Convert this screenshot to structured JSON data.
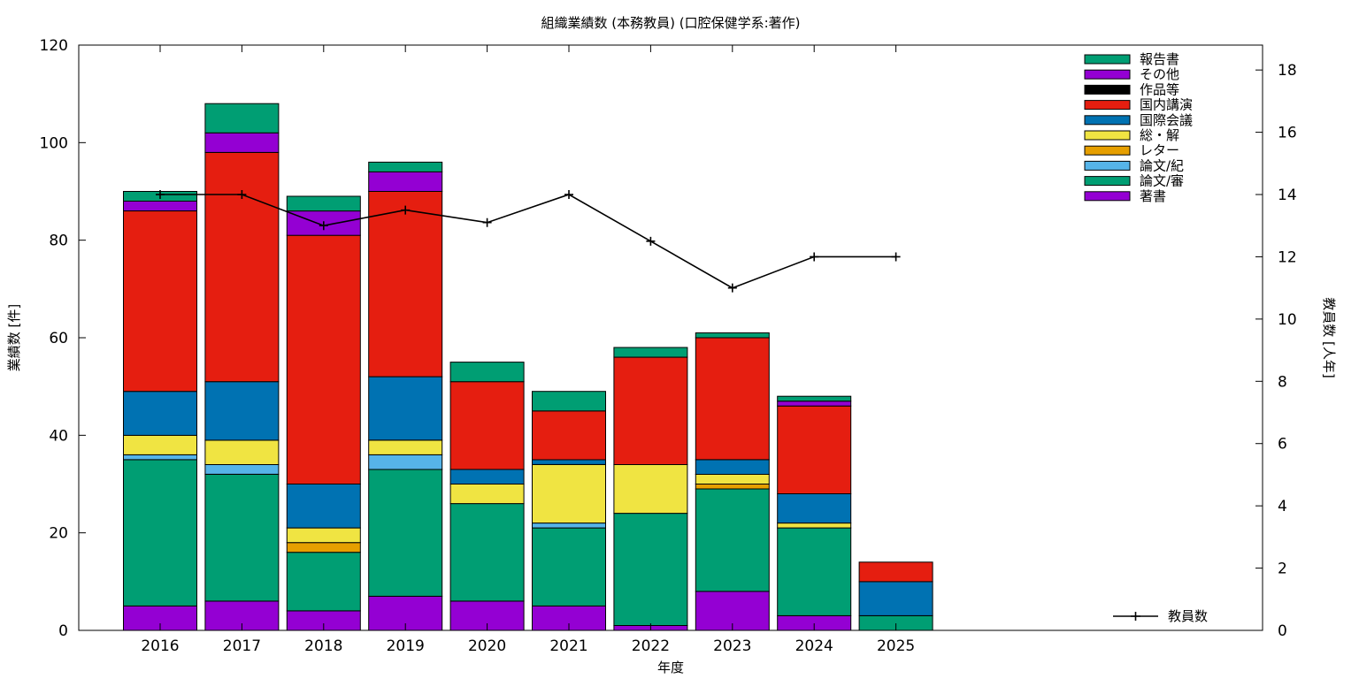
{
  "chart_data": {
    "type": "bar",
    "stacked": true,
    "title": "組織業績数 (本務教員) (口腔保健学系:著作)",
    "xlabel": "年度",
    "ylabel": "業績数 [件]",
    "y2label": "教員数 [人年]",
    "categories": [
      "2016",
      "2017",
      "2018",
      "2019",
      "2020",
      "2021",
      "2022",
      "2023",
      "2024",
      "2025"
    ],
    "ylim": [
      0,
      120
    ],
    "yticks": [
      0,
      20,
      40,
      60,
      80,
      100,
      120
    ],
    "y2lim": [
      0,
      18.8
    ],
    "y2ticks": [
      0,
      2,
      4,
      6,
      8,
      10,
      12,
      14,
      16,
      18
    ],
    "grid": false,
    "legend_position": "top-right",
    "series": [
      {
        "name": "著書",
        "color": "#9400d3",
        "values": [
          5,
          6,
          4,
          7,
          6,
          5,
          1,
          8,
          3,
          0
        ]
      },
      {
        "name": "論文/審",
        "color": "#009e73",
        "values": [
          30,
          26,
          12,
          26,
          20,
          16,
          23,
          21,
          18,
          3
        ]
      },
      {
        "name": "論文/紀",
        "color": "#56b4e9",
        "values": [
          1,
          2,
          0,
          3,
          0,
          1,
          0,
          0,
          0,
          0
        ]
      },
      {
        "name": "レター",
        "color": "#e69f00",
        "values": [
          0,
          0,
          2,
          0,
          0,
          0,
          0,
          1,
          0,
          0
        ]
      },
      {
        "name": "総・解",
        "color": "#f0e442",
        "values": [
          4,
          5,
          3,
          3,
          4,
          12,
          10,
          2,
          1,
          0
        ]
      },
      {
        "name": "国際会議",
        "color": "#0072b2",
        "values": [
          9,
          12,
          9,
          13,
          3,
          1,
          0,
          3,
          6,
          7
        ]
      },
      {
        "name": "国内講演",
        "color": "#e51e10",
        "values": [
          37,
          47,
          51,
          38,
          18,
          10,
          22,
          25,
          18,
          4
        ]
      },
      {
        "name": "作品等",
        "color": "#000000",
        "values": [
          0,
          0,
          0,
          0,
          0,
          0,
          0,
          0,
          0,
          0
        ]
      },
      {
        "name": "その他",
        "color": "#9400d3",
        "values": [
          2,
          4,
          5,
          4,
          0,
          0,
          0,
          0,
          1,
          0
        ]
      },
      {
        "name": "報告書",
        "color": "#009e73",
        "values": [
          2,
          6,
          3,
          2,
          4,
          4,
          2,
          1,
          1,
          0
        ]
      }
    ],
    "line_series": {
      "name": "教員数",
      "axis": "y2",
      "color": "#000000",
      "values": [
        14,
        14,
        13,
        13.5,
        13.1,
        14,
        12.5,
        11,
        12,
        12
      ]
    }
  }
}
